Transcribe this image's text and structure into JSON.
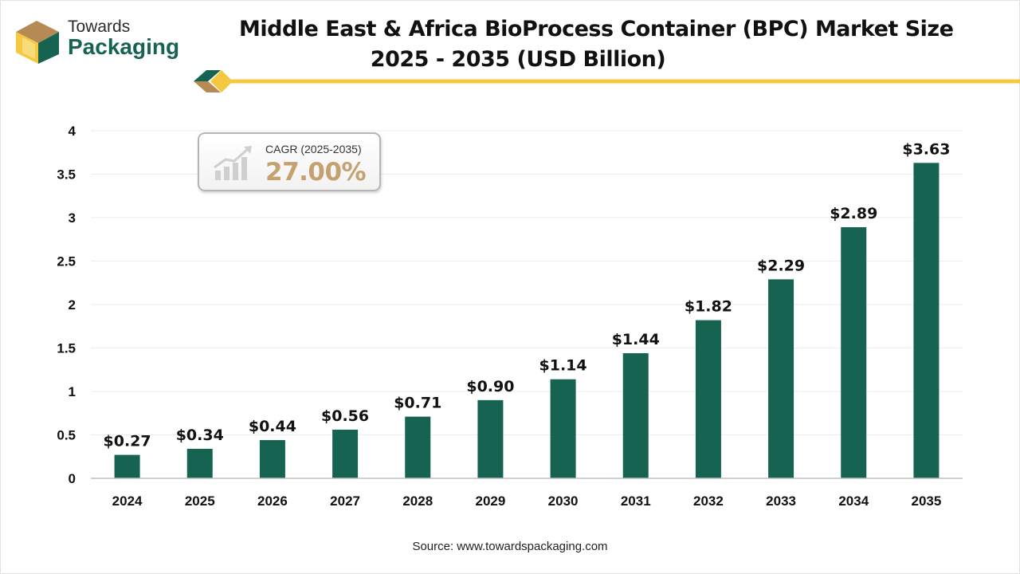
{
  "brand": {
    "logo_top": "Towards",
    "logo_bottom": "Packaging",
    "logo_icon": "package-box-icon"
  },
  "header": {
    "title_line1": "Middle East & Africa BioProcess Container (BPC) Market Size",
    "title_line2": "2025 - 2035 (USD Billion)"
  },
  "callout": {
    "label": "CAGR (2025-2035)",
    "value": "27.00%",
    "icon": "growth-chart-icon"
  },
  "source": "Source: www.towardspackaging.com",
  "colors": {
    "bar": "#176352",
    "accent_gold": "#f5c842",
    "cagr_value": "#c4a16e",
    "brand_green": "#176352"
  },
  "chart_data": {
    "type": "bar",
    "title": "Middle East & Africa BioProcess Container (BPC) Market Size 2025 - 2035 (USD Billion)",
    "categories": [
      "2024",
      "2025",
      "2026",
      "2027",
      "2028",
      "2029",
      "2030",
      "2031",
      "2032",
      "2033",
      "2034",
      "2035"
    ],
    "values": [
      0.27,
      0.34,
      0.44,
      0.56,
      0.71,
      0.9,
      1.14,
      1.44,
      1.82,
      2.29,
      2.89,
      3.63
    ],
    "value_labels": [
      "$0.27",
      "$0.34",
      "$0.44",
      "$0.56",
      "$0.71",
      "$0.90",
      "$1.14",
      "$1.44",
      "$1.82",
      "$2.29",
      "$2.89",
      "$3.63"
    ],
    "ylim": [
      0,
      4
    ],
    "yticks": [
      0,
      0.5,
      1,
      1.5,
      2,
      2.5,
      3,
      3.5,
      4
    ],
    "ytick_labels": [
      "0",
      "0.5",
      "1",
      "1.5",
      "2",
      "2.5",
      "3",
      "3.5",
      "4"
    ],
    "xlabel": "",
    "ylabel": "",
    "grid": true,
    "legend": false
  }
}
